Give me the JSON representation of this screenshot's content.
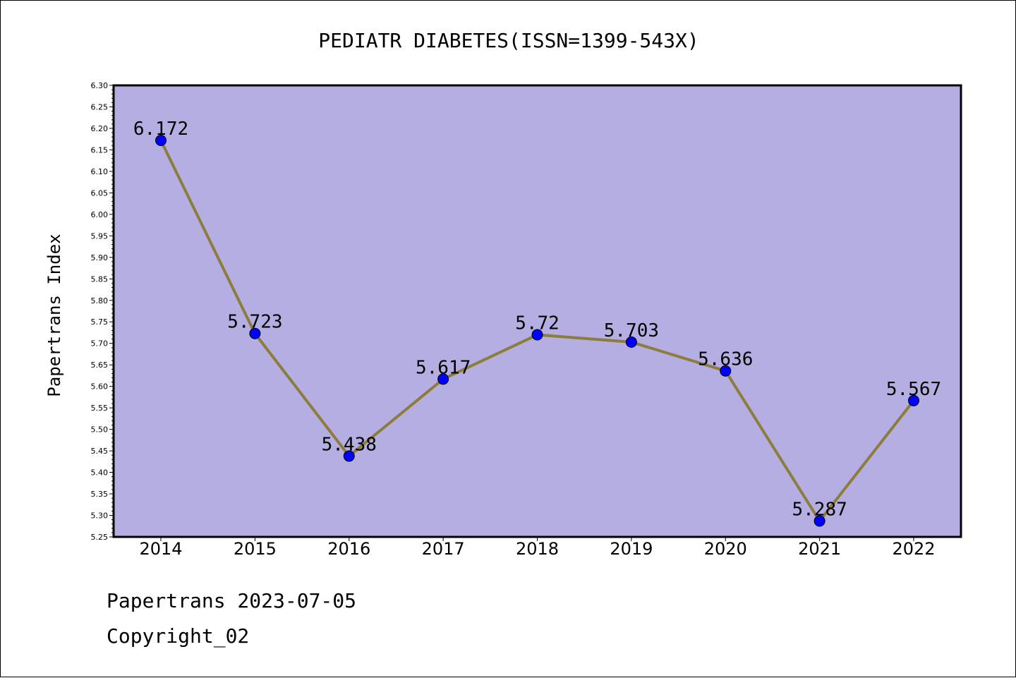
{
  "chart_data": {
    "type": "line",
    "title": "PEDIATR DIABETES(ISSN=1399-543X)",
    "xlabel": "",
    "ylabel": "Papertrans Index",
    "categories": [
      "2014",
      "2015",
      "2016",
      "2017",
      "2018",
      "2019",
      "2020",
      "2021",
      "2022"
    ],
    "series": [
      {
        "values": [
          6.172,
          5.723,
          5.438,
          5.617,
          5.72,
          5.703,
          5.636,
          5.287,
          5.567
        ],
        "data_labels": [
          "6.172",
          "5.723",
          "5.438",
          "5.617",
          "5.72",
          "5.703",
          "5.636",
          "5.287",
          "5.567"
        ]
      }
    ],
    "ylim": [
      5.25,
      6.3
    ],
    "yticks": [
      "5.25",
      "5.30",
      "5.35",
      "5.40",
      "5.45",
      "5.50",
      "5.55",
      "5.60",
      "5.65",
      "5.70",
      "5.75",
      "5.80",
      "5.85",
      "5.90",
      "5.95",
      "6.00",
      "6.05",
      "6.10",
      "6.15",
      "6.20",
      "6.25",
      "6.30"
    ],
    "grid": false,
    "colors": {
      "plot_background": "#b4aee2",
      "line": "#8c7d3c",
      "marker": "#0000ff"
    }
  },
  "footer": {
    "line1": "Papertrans 2023-07-05",
    "line2": "Copyright_02"
  }
}
